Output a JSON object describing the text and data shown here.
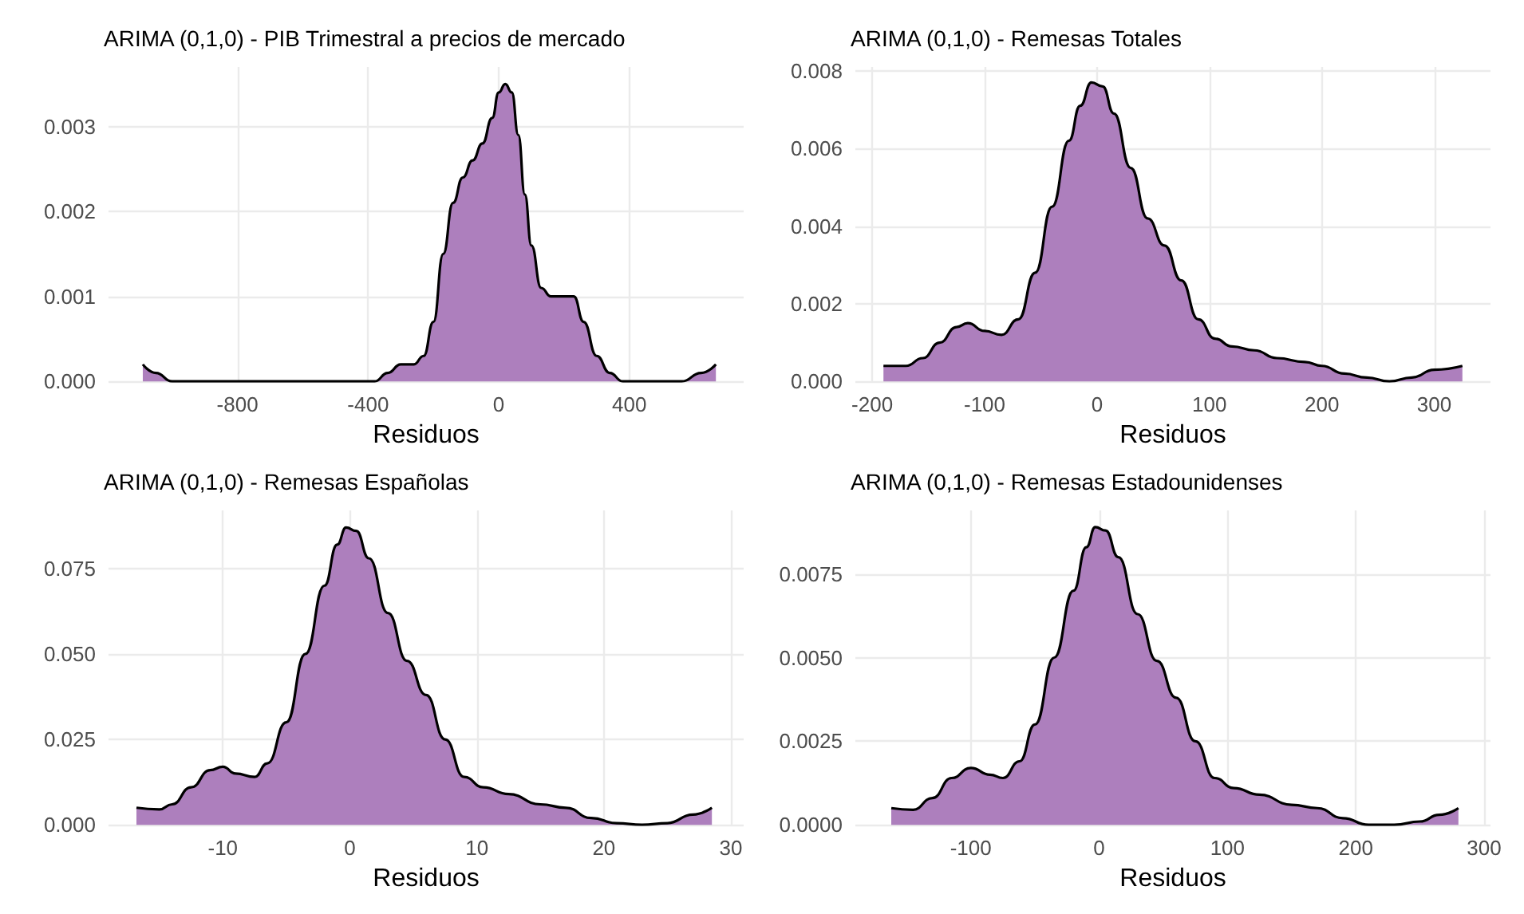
{
  "chart_data": [
    {
      "type": "area",
      "title": "ARIMA (0,1,0) - PIB Trimestral a precios de mercado",
      "xlabel": "Residuos",
      "grid": true,
      "xlim": [
        -1195,
        750
      ],
      "xticks": [
        -800,
        -400,
        0,
        400
      ],
      "ylim": [
        0,
        0.0037
      ],
      "yticks": [
        {
          "value": 0,
          "label": "0.000"
        },
        {
          "value": 0.001,
          "label": "0.001"
        },
        {
          "value": 0.002,
          "label": "0.002"
        },
        {
          "value": 0.003,
          "label": "0.003"
        }
      ],
      "series": [
        {
          "color": "#ad7fbd",
          "x": [
            -1090,
            -1050,
            -1000,
            -950,
            -800,
            -600,
            -420,
            -380,
            -340,
            -300,
            -260,
            -230,
            -200,
            -170,
            -140,
            -110,
            -80,
            -50,
            -20,
            0,
            20,
            40,
            60,
            80,
            100,
            130,
            160,
            200,
            230,
            260,
            300,
            340,
            380,
            500,
            560,
            620,
            665
          ],
          "values": [
            0.0002,
            0.0001,
            0,
            0,
            0,
            0,
            0,
            0,
            0.0001,
            0.0002,
            0.0002,
            0.0003,
            0.0007,
            0.0015,
            0.0021,
            0.0024,
            0.0026,
            0.0028,
            0.0031,
            0.0034,
            0.0035,
            0.0034,
            0.0029,
            0.0022,
            0.0016,
            0.0011,
            0.001,
            0.001,
            0.001,
            0.0007,
            0.0003,
            0.0001,
            0,
            0,
            0,
            0.0001,
            0.0002
          ]
        }
      ]
    },
    {
      "type": "area",
      "title": "ARIMA (0,1,0) - Remesas Totales",
      "xlabel": "Residuos",
      "grid": true,
      "xlim": [
        -215,
        350
      ],
      "xticks": [
        -200,
        -100,
        0,
        100,
        200,
        300
      ],
      "ylim": [
        0,
        0.0081
      ],
      "yticks": [
        {
          "value": 0,
          "label": "0.000"
        },
        {
          "value": 0.002,
          "label": "0.002"
        },
        {
          "value": 0.004,
          "label": "0.004"
        },
        {
          "value": 0.006,
          "label": "0.006"
        },
        {
          "value": 0.008,
          "label": "0.008"
        }
      ],
      "series": [
        {
          "color": "#ad7fbd",
          "x": [
            -190,
            -170,
            -155,
            -140,
            -125,
            -115,
            -100,
            -85,
            -70,
            -55,
            -40,
            -25,
            -15,
            -5,
            5,
            15,
            30,
            45,
            60,
            75,
            90,
            105,
            120,
            140,
            160,
            185,
            200,
            220,
            240,
            260,
            280,
            300,
            325
          ],
          "values": [
            0.0004,
            0.0004,
            0.0006,
            0.001,
            0.0014,
            0.0015,
            0.0013,
            0.0012,
            0.0016,
            0.0028,
            0.0045,
            0.0062,
            0.0071,
            0.0077,
            0.0076,
            0.0069,
            0.0055,
            0.0042,
            0.0035,
            0.0026,
            0.0016,
            0.0011,
            0.0009,
            0.0008,
            0.0006,
            0.0005,
            0.0004,
            0.0002,
            0.0001,
            0,
            0.0001,
            0.0003,
            0.0004
          ]
        }
      ]
    },
    {
      "type": "area",
      "title": "ARIMA (0,1,0) - Remesas Españolas",
      "xlabel": "Residuos",
      "grid": true,
      "xlim": [
        -19,
        31
      ],
      "xticks": [
        -10,
        0,
        10,
        20,
        30
      ],
      "ylim": [
        0,
        0.092
      ],
      "yticks": [
        {
          "value": 0,
          "label": "0.000"
        },
        {
          "value": 0.025,
          "label": "0.025"
        },
        {
          "value": 0.05,
          "label": "0.050"
        },
        {
          "value": 0.075,
          "label": "0.075"
        }
      ],
      "series": [
        {
          "color": "#ad7fbd",
          "x": [
            -16.8,
            -15,
            -14,
            -12.5,
            -11,
            -10,
            -9,
            -7.5,
            -6.5,
            -5,
            -3.5,
            -2,
            -1,
            -0.3,
            0.5,
            1.5,
            3,
            4.5,
            6,
            7.5,
            9,
            10.5,
            12.5,
            15,
            17,
            19,
            21,
            23,
            25,
            27,
            28.5
          ],
          "values": [
            0.005,
            0.0045,
            0.006,
            0.011,
            0.016,
            0.017,
            0.015,
            0.014,
            0.018,
            0.03,
            0.05,
            0.07,
            0.082,
            0.087,
            0.086,
            0.078,
            0.062,
            0.048,
            0.038,
            0.025,
            0.014,
            0.011,
            0.009,
            0.006,
            0.005,
            0.002,
            0.0005,
            0,
            0.0005,
            0.003,
            0.005
          ]
        }
      ]
    },
    {
      "type": "area",
      "title": "ARIMA (0,1,0) - Remesas Estadounidenses",
      "xlabel": "Residuos",
      "grid": true,
      "xlim": [
        -190,
        305
      ],
      "xticks": [
        -100,
        0,
        100,
        200,
        300
      ],
      "ylim": [
        0,
        0.0094
      ],
      "yticks": [
        {
          "value": 0,
          "label": "0.0000"
        },
        {
          "value": 0.0025,
          "label": "0.0025"
        },
        {
          "value": 0.005,
          "label": "0.0050"
        },
        {
          "value": 0.0075,
          "label": "0.0075"
        }
      ],
      "series": [
        {
          "color": "#ad7fbd",
          "x": [
            -162,
            -145,
            -130,
            -115,
            -100,
            -85,
            -75,
            -62,
            -50,
            -35,
            -20,
            -10,
            -3,
            5,
            15,
            30,
            45,
            60,
            75,
            90,
            105,
            125,
            150,
            170,
            190,
            210,
            230,
            250,
            265,
            280
          ],
          "values": [
            0.0005,
            0.00045,
            0.0008,
            0.0014,
            0.0017,
            0.0015,
            0.0014,
            0.0019,
            0.003,
            0.005,
            0.007,
            0.0083,
            0.0089,
            0.0088,
            0.008,
            0.0063,
            0.0049,
            0.0038,
            0.0025,
            0.0014,
            0.0011,
            0.0009,
            0.0006,
            0.0005,
            0.0002,
            0,
            0,
            0.0001,
            0.0003,
            0.0005
          ]
        }
      ]
    }
  ]
}
